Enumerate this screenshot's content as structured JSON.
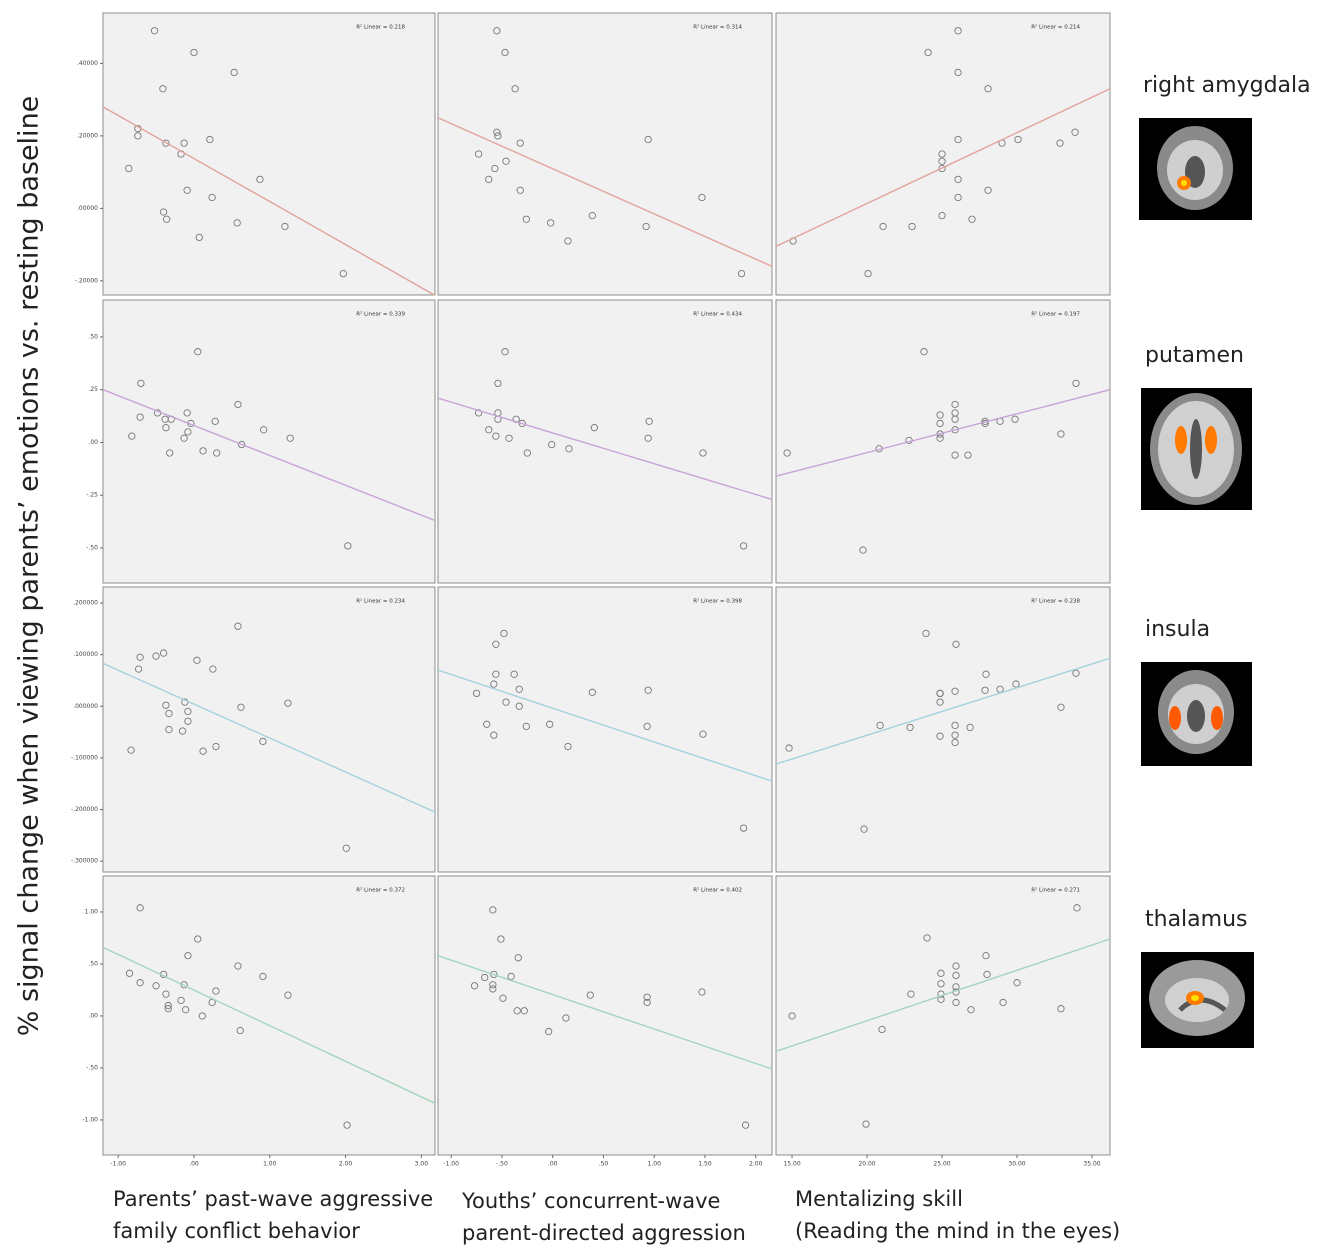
{
  "y_label": "% signal change when viewing parents’ emotions vs. resting baseline",
  "x_labels": [
    [
      "Parents’ past-wave aggressive",
      "family conflict behavior"
    ],
    [
      "Youths’ concurrent-wave",
      "parent-directed aggression"
    ],
    [
      "Mentalizing skill",
      "(Reading the mind in the eyes)"
    ]
  ],
  "regions": [
    "right amygdala",
    "putamen",
    "insula",
    "thalamus"
  ],
  "chart_data": [
    {
      "type": "scatter",
      "annotation": "R² Linear = 0.218",
      "marker_color": "#777777",
      "x": [
        -0.52,
        0,
        0.53,
        -0.41,
        -0.74,
        -0.74,
        -0.37,
        -0.13,
        0.21,
        -0.17,
        -0.86,
        0.87,
        -0.09,
        0.24,
        -0.4,
        -0.36,
        0.57,
        1.2,
        0.07,
        1.97
      ],
      "y": [
        0.49,
        0.43,
        0.375,
        0.33,
        0.22,
        0.2,
        0.18,
        0.18,
        0.19,
        0.15,
        0.11,
        0.08,
        0.05,
        0.03,
        -0.01,
        -0.03,
        -0.04,
        -0.05,
        -0.08,
        -0.18
      ],
      "trendline": {
        "x": [
          -1.2,
          3.18
        ],
        "y": [
          0.28,
          -0.24
        ],
        "color": "#e3a39c"
      },
      "xlim": [
        -1.2,
        3.18
      ],
      "ylim": [
        -0.239,
        0.539
      ],
      "yticks": [
        {
          "value": 0.4,
          "label": ".40000"
        },
        {
          "value": 0.2,
          "label": ".20000"
        },
        {
          "value": 0,
          "label": ".00000"
        },
        {
          "value": -0.2,
          "label": "-.20000"
        }
      ]
    },
    {
      "type": "scatter",
      "annotation": "R² Linear = 0.314",
      "marker_color": "#777777",
      "x": [
        -0.55,
        -0.47,
        -0.37,
        -0.55,
        -0.54,
        -0.32,
        0.94,
        -0.73,
        -0.46,
        -0.57,
        -0.63,
        -0.32,
        1.47,
        0.39,
        -0.26,
        -0.02,
        0.92,
        0.15,
        1.86
      ],
      "y": [
        0.49,
        0.43,
        0.33,
        0.21,
        0.2,
        0.18,
        0.19,
        0.15,
        0.13,
        0.11,
        0.08,
        0.05,
        0.03,
        -0.02,
        -0.03,
        -0.04,
        -0.05,
        -0.09,
        -0.18
      ],
      "trendline": {
        "x": [
          -1.13,
          2.16
        ],
        "y": [
          0.25,
          -0.16
        ],
        "color": "#e3a39c"
      },
      "xlim": [
        -1.13,
        2.16
      ],
      "ylim": [
        -0.239,
        0.539
      ]
    },
    {
      "type": "scatter",
      "annotation": "R² Linear = 0.214",
      "marker_color": "#777777",
      "x": [
        24.07,
        26.07,
        26.07,
        28.07,
        26.07,
        25,
        25,
        25,
        29,
        30.07,
        32.87,
        33.87,
        26.07,
        28.07,
        26.07,
        25,
        27,
        21.07,
        23,
        15.07,
        20.07
      ],
      "y": [
        0.43,
        0.49,
        0.375,
        0.33,
        0.19,
        0.15,
        0.13,
        0.11,
        0.18,
        0.19,
        0.18,
        0.21,
        0.08,
        0.05,
        0.03,
        -0.02,
        -0.03,
        -0.05,
        -0.05,
        -0.09,
        -0.18
      ],
      "trendline": {
        "x": [
          13.93,
          36.2
        ],
        "y": [
          -0.105,
          0.33
        ],
        "color": "#e3a39c"
      },
      "xlim": [
        13.93,
        36.2
      ],
      "ylim": [
        -0.239,
        0.539
      ]
    },
    {
      "type": "scatter",
      "annotation": "R² Linear = 0.339",
      "marker_color": "#777777",
      "x": [
        -0.7,
        0.05,
        0.58,
        -0.48,
        -0.71,
        -0.38,
        -0.3,
        -0.09,
        -0.04,
        0.28,
        -0.37,
        -0.08,
        -0.13,
        -0.82,
        0.92,
        1.27,
        0.63,
        0.12,
        0.3,
        -0.32,
        2.03
      ],
      "y": [
        0.28,
        0.43,
        0.18,
        0.14,
        0.12,
        0.11,
        0.11,
        0.14,
        0.09,
        0.1,
        0.07,
        0.05,
        0.02,
        0.03,
        0.06,
        0.02,
        -0.01,
        -0.04,
        -0.05,
        -0.05,
        -0.49
      ],
      "trendline": {
        "x": [
          -1.2,
          3.18
        ],
        "y": [
          0.25,
          -0.37
        ],
        "color": "#c9a2d6"
      },
      "xlim": [
        -1.2,
        3.18
      ],
      "ylim": [
        -0.666,
        0.675
      ],
      "yticks": [
        {
          "value": 0.5,
          "label": ".50"
        },
        {
          "value": 0.25,
          "label": ".25"
        },
        {
          "value": 0,
          "label": ".00"
        },
        {
          "value": -0.25,
          "label": "-.25"
        },
        {
          "value": -0.5,
          "label": "-.50"
        }
      ]
    },
    {
      "type": "scatter",
      "annotation": "R² Linear = 0.434",
      "marker_color": "#777777",
      "x": [
        -0.47,
        -0.54,
        -0.73,
        -0.54,
        -0.54,
        -0.36,
        -0.3,
        0.95,
        -0.63,
        0.41,
        -0.56,
        -0.43,
        0.94,
        -0.01,
        -0.25,
        0.16,
        1.48,
        1.88
      ],
      "y": [
        0.43,
        0.28,
        0.14,
        0.14,
        0.11,
        0.11,
        0.09,
        0.1,
        0.06,
        0.07,
        0.03,
        0.02,
        0.02,
        -0.01,
        -0.05,
        -0.03,
        -0.05,
        -0.49
      ],
      "trendline": {
        "x": [
          -1.13,
          2.16
        ],
        "y": [
          0.21,
          -0.27
        ],
        "color": "#c9a2d6"
      },
      "xlim": [
        -1.13,
        2.16
      ],
      "ylim": [
        -0.666,
        0.675
      ]
    },
    {
      "type": "scatter",
      "annotation": "R² Linear = 0.197",
      "marker_color": "#777777",
      "x": [
        23.8,
        25.87,
        25.87,
        24.87,
        24.87,
        25.87,
        25.87,
        24.87,
        24.87,
        22.8,
        27.87,
        27.87,
        28.87,
        29.87,
        33.93,
        32.93,
        25.87,
        26.73,
        20.8,
        14.67,
        19.73
      ],
      "y": [
        0.43,
        0.18,
        0.14,
        0.13,
        0.09,
        0.11,
        0.06,
        0.04,
        0.02,
        0.01,
        0.1,
        0.09,
        0.1,
        0.11,
        0.28,
        0.04,
        -0.06,
        -0.06,
        -0.03,
        -0.05,
        -0.51
      ],
      "trendline": {
        "x": [
          13.93,
          36.2
        ],
        "y": [
          -0.16,
          0.25
        ],
        "color": "#c9a2d6"
      },
      "xlim": [
        13.93,
        36.2
      ],
      "ylim": [
        -0.666,
        0.675
      ]
    },
    {
      "type": "scatter",
      "annotation": "R² Linear = 0.234",
      "marker_color": "#777777",
      "x": [
        0.58,
        -0.71,
        -0.5,
        -0.4,
        -0.73,
        0.04,
        0.25,
        1.24,
        -0.12,
        -0.37,
        0.62,
        -0.33,
        -0.08,
        -0.08,
        -0.33,
        -0.15,
        0.29,
        0.12,
        0.91,
        -0.83,
        2.01
      ],
      "y": [
        0.155,
        0.095,
        0.097,
        0.103,
        0.072,
        0.089,
        0.072,
        0.006,
        0.008,
        0.002,
        -0.002,
        -0.014,
        -0.01,
        -0.029,
        -0.045,
        -0.048,
        -0.078,
        -0.087,
        -0.068,
        -0.085,
        -0.275
      ],
      "trendline": {
        "x": [
          -1.2,
          3.18
        ],
        "y": [
          0.083,
          -0.205
        ],
        "color": "#a3d2de"
      },
      "xlim": [
        -1.2,
        3.18
      ],
      "ylim": [
        -0.321,
        0.231
      ],
      "yticks": [
        {
          "value": 0.2,
          "label": ".200000"
        },
        {
          "value": 0.1,
          "label": ".100000"
        },
        {
          "value": 0,
          "label": ".000000"
        },
        {
          "value": -0.1,
          "label": "-.100000"
        },
        {
          "value": -0.2,
          "label": "-.200000"
        },
        {
          "value": -0.3,
          "label": "-.300000"
        }
      ]
    },
    {
      "type": "scatter",
      "annotation": "R² Linear = 0.398",
      "marker_color": "#777777",
      "x": [
        -0.48,
        -0.56,
        -0.56,
        -0.38,
        -0.58,
        -0.75,
        -0.33,
        0.39,
        0.94,
        -0.46,
        -0.33,
        -0.65,
        -0.26,
        -0.03,
        0.93,
        -0.58,
        0.15,
        1.48,
        1.88
      ],
      "y": [
        0.141,
        0.12,
        0.062,
        0.062,
        0.043,
        0.025,
        0.033,
        0.027,
        0.031,
        0.008,
        0,
        -0.035,
        -0.039,
        -0.035,
        -0.039,
        -0.056,
        -0.078,
        -0.054,
        -0.236
      ],
      "trendline": {
        "x": [
          -1.13,
          2.16
        ],
        "y": [
          0.07,
          -0.145
        ],
        "color": "#a3d2de"
      },
      "xlim": [
        -1.13,
        2.16
      ],
      "ylim": [
        -0.321,
        0.231
      ]
    },
    {
      "type": "scatter",
      "annotation": "R² Linear = 0.238",
      "marker_color": "#777777",
      "x": [
        23.93,
        25.93,
        27.93,
        24.87,
        24.87,
        25.87,
        24.87,
        28.87,
        27.87,
        29.93,
        33.93,
        32.93,
        25.87,
        25.87,
        25.87,
        24.87,
        26.87,
        20.87,
        22.87,
        14.8,
        19.8
      ],
      "y": [
        0.141,
        0.12,
        0.062,
        0.025,
        0.025,
        0.029,
        0.008,
        0.033,
        0.031,
        0.043,
        0.064,
        -0.002,
        -0.037,
        -0.056,
        -0.07,
        -0.058,
        -0.041,
        -0.037,
        -0.041,
        -0.081,
        -0.238
      ],
      "trendline": {
        "x": [
          13.93,
          36.2
        ],
        "y": [
          -0.112,
          0.093
        ],
        "color": "#a3d2de"
      },
      "xlim": [
        13.93,
        36.2
      ],
      "ylim": [
        -0.321,
        0.231
      ]
    },
    {
      "type": "scatter",
      "annotation": "R² Linear = 0.372",
      "marker_color": "#777777",
      "x": [
        -0.71,
        0.05,
        -0.08,
        0.58,
        -0.85,
        0.91,
        -0.4,
        -0.71,
        -0.5,
        -0.13,
        -0.37,
        0.29,
        1.24,
        -0.17,
        -0.34,
        0.24,
        -0.34,
        -0.11,
        0.11,
        0.61,
        2.02
      ],
      "y": [
        1.04,
        0.74,
        0.58,
        0.48,
        0.41,
        0.38,
        0.4,
        0.32,
        0.29,
        0.3,
        0.21,
        0.24,
        0.2,
        0.15,
        0.1,
        0.13,
        0.07,
        0.06,
        0,
        -0.14,
        -1.05
      ],
      "trendline": {
        "x": [
          -1.2,
          3.18
        ],
        "y": [
          0.66,
          -0.84
        ],
        "color": "#a3d6bb"
      },
      "xlim": [
        -1.2,
        3.18
      ],
      "ylim": [
        -1.337,
        1.346
      ],
      "yticks": [
        {
          "value": 1,
          "label": "1.00"
        },
        {
          "value": 0.5,
          "label": ".50"
        },
        {
          "value": 0,
          "label": ".00"
        },
        {
          "value": -0.5,
          "label": "-.50"
        },
        {
          "value": -1,
          "label": "-1.00"
        }
      ],
      "xticks": [
        {
          "value": -1,
          "label": "-1.00"
        },
        {
          "value": 0,
          "label": ".00"
        },
        {
          "value": 1,
          "label": "1.00"
        },
        {
          "value": 2,
          "label": "2.00"
        },
        {
          "value": 3,
          "label": "3.00"
        }
      ]
    },
    {
      "type": "scatter",
      "annotation": "R² Linear = 0.402",
      "marker_color": "#777777",
      "x": [
        -0.59,
        -0.51,
        -0.34,
        -0.58,
        -0.41,
        -0.67,
        -0.59,
        -0.59,
        -0.77,
        -0.49,
        0.37,
        0.93,
        0.93,
        1.47,
        -0.35,
        -0.28,
        0.13,
        -0.04,
        1.9
      ],
      "y": [
        1.02,
        0.74,
        0.56,
        0.4,
        0.38,
        0.37,
        0.3,
        0.26,
        0.29,
        0.17,
        0.2,
        0.18,
        0.13,
        0.23,
        0.05,
        0.05,
        -0.02,
        -0.15,
        -1.05
      ],
      "trendline": {
        "x": [
          -1.13,
          2.16
        ],
        "y": [
          0.58,
          -0.51
        ],
        "color": "#a3d6bb"
      },
      "xlim": [
        -1.13,
        2.16
      ],
      "ylim": [
        -1.337,
        1.346
      ],
      "xticks": [
        {
          "value": -1,
          "label": "-1.00"
        },
        {
          "value": -0.5,
          "label": "-.50"
        },
        {
          "value": 0,
          "label": ".00"
        },
        {
          "value": 0.5,
          "label": ".50"
        },
        {
          "value": 1,
          "label": "1.00"
        },
        {
          "value": 1.5,
          "label": "1.50"
        },
        {
          "value": 2,
          "label": "2.00"
        }
      ]
    },
    {
      "type": "scatter",
      "annotation": "R² Linear = 0.271",
      "marker_color": "#777777",
      "x": [
        24,
        34,
        25.93,
        24.93,
        27.93,
        28,
        25.93,
        24.93,
        25.93,
        25.93,
        22.93,
        24.93,
        30,
        24.93,
        25.93,
        29.07,
        26.93,
        32.93,
        15,
        21,
        19.93
      ],
      "y": [
        0.75,
        1.04,
        0.48,
        0.41,
        0.58,
        0.4,
        0.39,
        0.31,
        0.28,
        0.23,
        0.21,
        0.21,
        0.32,
        0.16,
        0.13,
        0.13,
        0.06,
        0.07,
        0,
        -0.13,
        -1.04
      ],
      "trendline": {
        "x": [
          13.93,
          36.2
        ],
        "y": [
          -0.34,
          0.74
        ],
        "color": "#a3d6bb"
      },
      "xlim": [
        13.93,
        36.2
      ],
      "ylim": [
        -1.337,
        1.346
      ],
      "xticks": [
        {
          "value": 15,
          "label": "15.00"
        },
        {
          "value": 20,
          "label": "20.00"
        },
        {
          "value": 25,
          "label": "25.00"
        },
        {
          "value": 30,
          "label": "30.00"
        },
        {
          "value": 35,
          "label": "35.00"
        }
      ]
    }
  ]
}
